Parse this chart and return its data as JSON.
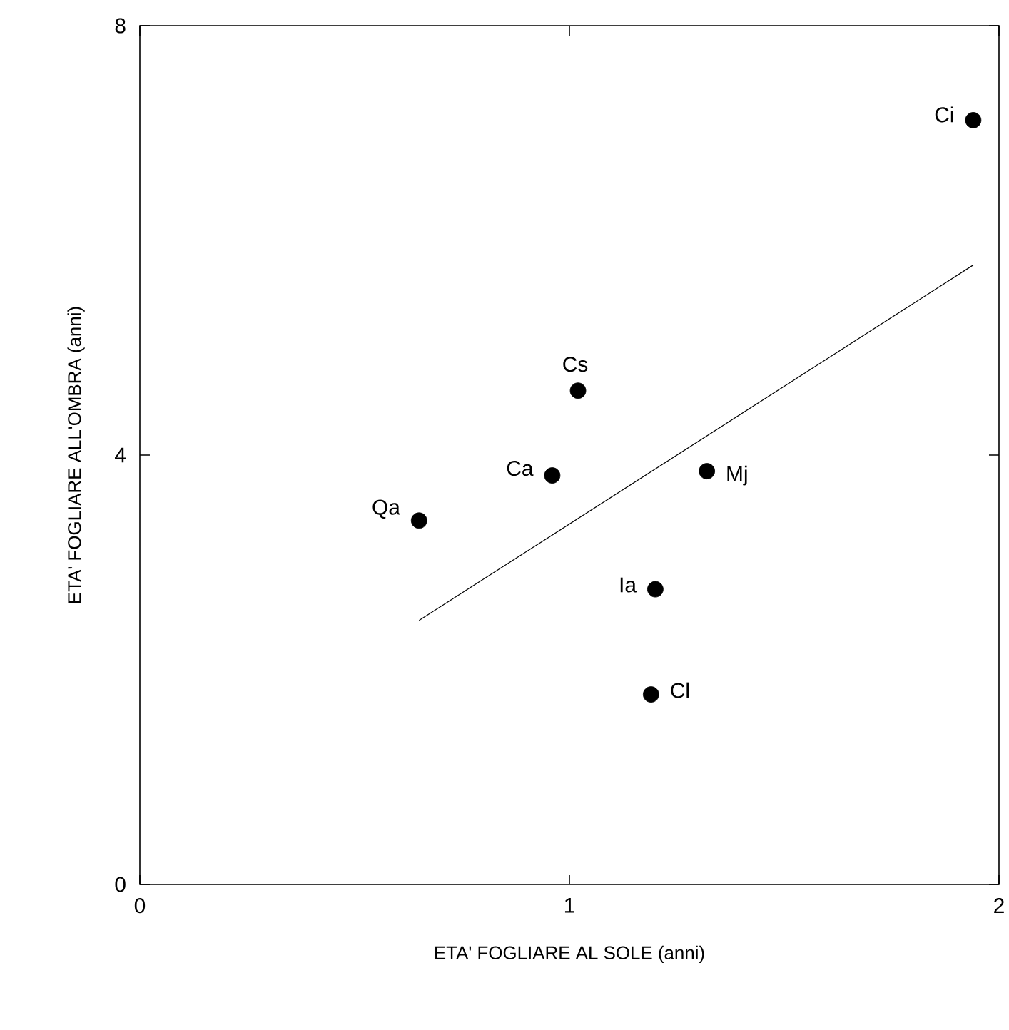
{
  "chart_data": {
    "type": "scatter",
    "xlabel": "ETA' FOGLIARE AL SOLE (anni)",
    "ylabel": "ETA' FOGLIARE ALL'OMBRA (anni)",
    "xlim": [
      0,
      2
    ],
    "ylim": [
      0,
      8
    ],
    "xticks": [
      0,
      1,
      2
    ],
    "yticks": [
      0,
      4,
      8
    ],
    "grid": false,
    "legend": false,
    "marker": "circle",
    "series": [
      {
        "color": "#000000",
        "x": [
          0.65,
          0.96,
          1.02,
          1.32,
          1.2,
          1.19,
          1.94
        ],
        "values": [
          3.39,
          3.81,
          4.6,
          3.85,
          2.75,
          1.77,
          7.12
        ]
      },
      {
        "type": "line",
        "color": "#000000",
        "marker": "none",
        "x": [
          0.65,
          1.94
        ],
        "values": [
          2.46,
          5.77
        ]
      }
    ],
    "annotations": [
      {
        "text": "Qa",
        "x": 0.65,
        "y": 3.39
      },
      {
        "text": "Ca",
        "x": 0.96,
        "y": 3.81
      },
      {
        "text": "Cs",
        "x": 1.02,
        "y": 4.6
      },
      {
        "text": "Mj",
        "x": 1.32,
        "y": 3.85
      },
      {
        "text": "Ia",
        "x": 1.2,
        "y": 2.75
      },
      {
        "text": "Cl",
        "x": 1.19,
        "y": 1.77
      },
      {
        "text": "Ci",
        "x": 1.94,
        "y": 7.12
      }
    ]
  }
}
